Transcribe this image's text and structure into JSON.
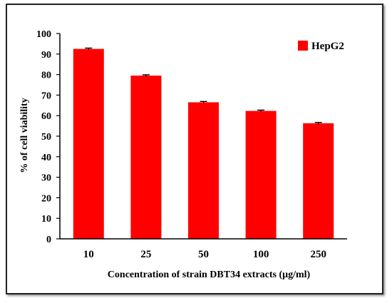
{
  "chart_data": {
    "type": "bar",
    "title": "",
    "xlabel": "Concentration of strain DBT34 extracts (μg/ml)",
    "ylabel": "% of cell viability",
    "categories": [
      "10",
      "25",
      "50",
      "100",
      "250"
    ],
    "series": [
      {
        "name": "HepG2",
        "values": [
          92.5,
          79.5,
          66.5,
          62.3,
          56.3
        ],
        "errors": [
          0.4,
          0.4,
          0.4,
          0.4,
          0.4
        ],
        "color": "#ff0000"
      }
    ],
    "ylim": [
      0,
      100
    ],
    "yticks": [
      "0",
      "10",
      "20",
      "30",
      "40",
      "50",
      "60",
      "70",
      "80",
      "90",
      "100"
    ],
    "grid": false,
    "legend": "top-right"
  }
}
